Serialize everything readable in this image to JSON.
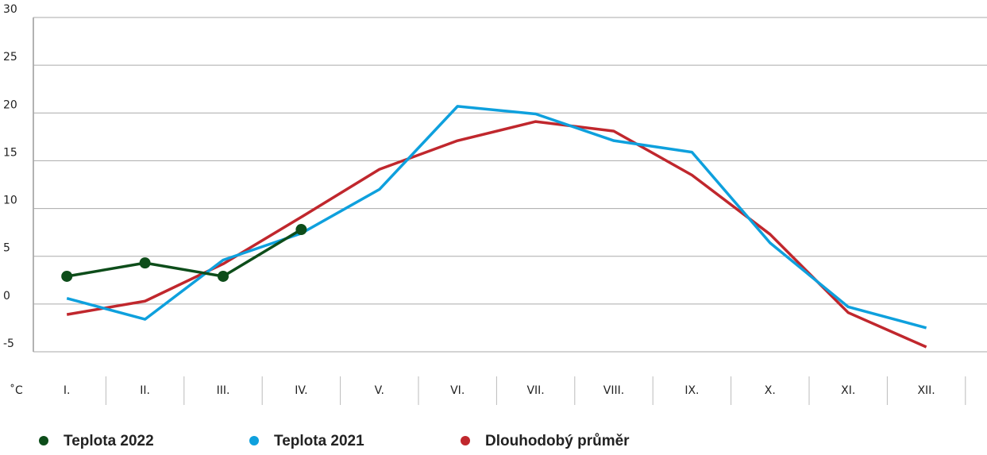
{
  "chart_data": {
    "type": "line",
    "categories": [
      "I.",
      "II.",
      "III.",
      "IV.",
      "V.",
      "VI.",
      "VII.",
      "VIII.",
      "IX.",
      "X.",
      "XI.",
      "XII."
    ],
    "y_label": "˚C",
    "series": [
      {
        "name": "Teplota 2022",
        "color": "#0d4d1a",
        "marker": true,
        "values": [
          2.9,
          4.3,
          2.9,
          7.8,
          null,
          null,
          null,
          null,
          null,
          null,
          null,
          null
        ]
      },
      {
        "name": "Teplota 2021",
        "color": "#0ea0dd",
        "marker": false,
        "values": [
          0.6,
          -1.6,
          4.6,
          7.4,
          12.0,
          20.7,
          19.9,
          17.1,
          15.9,
          6.4,
          -0.3,
          -2.5
        ]
      },
      {
        "name": "Dlouhodobý průměr",
        "color": "#c0272d",
        "marker": false,
        "values": [
          -1.1,
          0.3,
          4.2,
          9.1,
          14.1,
          17.1,
          19.1,
          18.1,
          13.5,
          7.3,
          -0.9,
          -4.5
        ]
      }
    ],
    "ylim": [
      -5,
      30
    ],
    "yticks": [
      -5,
      0,
      5,
      10,
      15,
      20,
      25,
      30
    ],
    "grid": true
  }
}
